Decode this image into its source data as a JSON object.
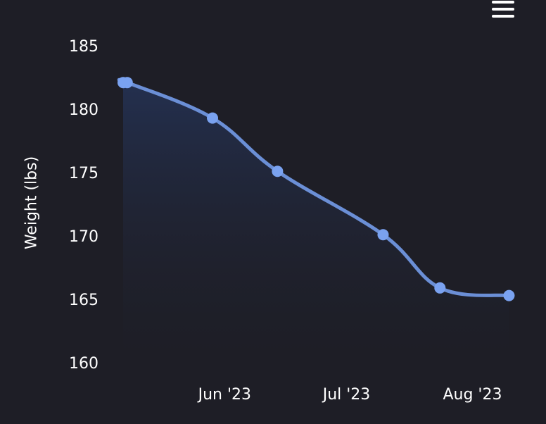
{
  "menu": {
    "icon": "hamburger-menu-icon"
  },
  "chart_data": {
    "type": "area",
    "ylabel": "Weight (lbs)",
    "xlabel": "",
    "title": "",
    "ylim": [
      160,
      185
    ],
    "yticks": [
      160,
      165,
      170,
      175,
      180,
      185
    ],
    "xticks": [
      {
        "date": "2023-06-01",
        "label": "Jun '23"
      },
      {
        "date": "2023-07-01",
        "label": "Jul '23"
      },
      {
        "date": "2023-08-01",
        "label": "Aug '23"
      }
    ],
    "xlim": [
      "2023-05-07",
      "2023-08-12"
    ],
    "series": [
      {
        "points": [
          {
            "x": "2023-05-07",
            "y": 182.1
          },
          {
            "x": "2023-05-08",
            "y": 182.1
          },
          {
            "x": "2023-05-29",
            "y": 179.3
          },
          {
            "x": "2023-06-14",
            "y": 175.1
          },
          {
            "x": "2023-07-10",
            "y": 170.1
          },
          {
            "x": "2023-07-24",
            "y": 165.9
          },
          {
            "x": "2023-08-10",
            "y": 165.3
          }
        ]
      }
    ],
    "colors": {
      "line": "#6b8fd6",
      "marker": "#7aa2f0",
      "fill_top": "#243152",
      "text": "#ffffff",
      "background": "#1e1e26"
    },
    "grid": false,
    "legend": "none"
  }
}
